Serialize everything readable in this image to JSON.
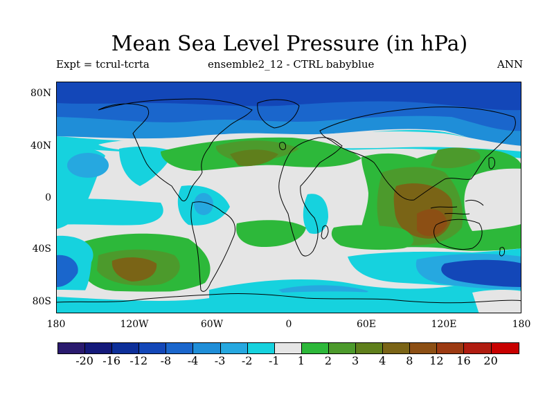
{
  "title": "Mean Sea Level Pressure (in hPa)",
  "subtitle_left": "Expt = tcrul-tcrta",
  "subtitle_center": "ensemble2_12 - CTRL babyblue",
  "subtitle_right": "ANN",
  "lat_labels": [
    "80N",
    "40N",
    "0",
    "40S",
    "80S"
  ],
  "lon_labels": [
    "180",
    "120W",
    "60W",
    "0",
    "60E",
    "120E",
    "180"
  ],
  "colorbar": {
    "colors": [
      "#2a1a6e",
      "#14197a",
      "#0d2f99",
      "#1347b8",
      "#1a66cc",
      "#1f8ed8",
      "#26a8e0",
      "#16d2de",
      "#e5e5e5",
      "#2db83a",
      "#4c9a2c",
      "#5f7f1c",
      "#7a6416",
      "#8c4f14",
      "#9c3a12",
      "#b01c10",
      "#c80000"
    ],
    "labels": [
      "-20",
      "-16",
      "-12",
      "-8",
      "-4",
      "-3",
      "-2",
      "-1",
      "1",
      "2",
      "3",
      "4",
      "8",
      "12",
      "16",
      "20"
    ]
  },
  "legend_colors": {
    "neutral": "#e5e5e5",
    "neg1": "#16d2de",
    "neg2": "#26a8e0",
    "neg3": "#1f8ed8",
    "neg4": "#1a66cc",
    "neg8": "#1347b8",
    "pos1": "#2db83a",
    "pos2": "#4c9a2c",
    "pos3": "#5f7f1c",
    "pos4": "#7a6416",
    "coast": "#000000"
  }
}
